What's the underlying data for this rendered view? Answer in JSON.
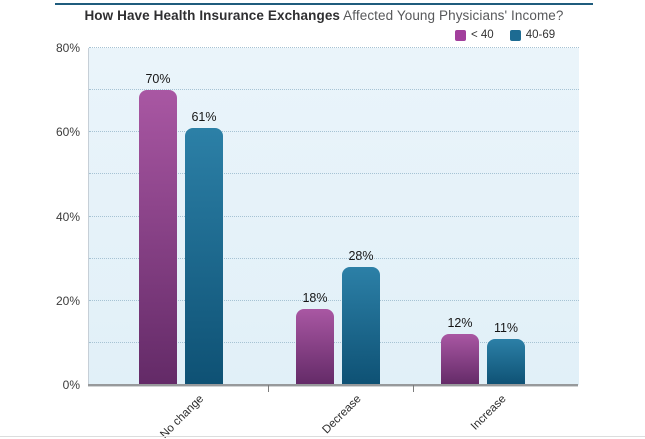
{
  "title": {
    "bold": "How Have Health Insurance Exchanges",
    "rest": " Affected Young Physicians' Income?"
  },
  "colors": {
    "title_rule": "#1f5c7d",
    "plot_bg_top": "#eaf4fa",
    "plot_bg_bottom": "#e1f0f8",
    "gridline": "#a6c3d4",
    "axis_line": "#c6cfd7",
    "baseline": "#97999b"
  },
  "chart_data": {
    "type": "bar",
    "title": "How Have Health Insurance Exchanges Affected Young Physicians' Income?",
    "categories": [
      "No change",
      "Decrease",
      "Increase"
    ],
    "series": [
      {
        "name": "< 40",
        "values": [
          70,
          18,
          12
        ],
        "labels": [
          "70%",
          "18%",
          "12%"
        ],
        "color_top": "#a957a3",
        "color_bottom": "#632a67",
        "legend_color": "#a23f9c"
      },
      {
        "name": "40-69",
        "values": [
          61,
          28,
          11
        ],
        "labels": [
          "61%",
          "28%",
          "11%"
        ],
        "color_top": "#2c80a7",
        "color_bottom": "#0e5174",
        "legend_color": "#1d6b92"
      }
    ],
    "ylim": [
      0,
      80
    ],
    "yticks": [
      {
        "value": 0,
        "label": "0%"
      },
      {
        "value": 20,
        "label": "20%"
      },
      {
        "value": 40,
        "label": "40%"
      },
      {
        "value": 60,
        "label": "60%"
      },
      {
        "value": 80,
        "label": "80%"
      }
    ],
    "gridline_step": 10,
    "grid": "horizontal-dotted",
    "legend_position": "top-right",
    "xlabel": "",
    "ylabel": ""
  }
}
